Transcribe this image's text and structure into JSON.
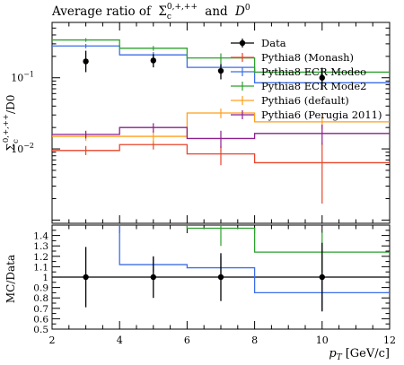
{
  "chart_data": {
    "type": "line",
    "title_text": "Average ratio of",
    "title_sigma": "Σ",
    "title_sigma_sub": "c",
    "title_sigma_sup": "0,+,++",
    "title_and": "and",
    "title_d": "D",
    "title_d_sup": "0",
    "ylabel_sigma": "Σ",
    "ylabel_sub": "c",
    "ylabel_sup": "0,+,++",
    "ylabel_tail": "/D0",
    "xlabel_p": "p",
    "xlabel_sub": "T",
    "xlabel_unit": "[GeV/c]",
    "ratio_ylabel": "MC/Data",
    "x_bin_edges": [
      2,
      4,
      6,
      8,
      12
    ],
    "x_ticks": [
      "2",
      "4",
      "6",
      "8",
      "10",
      "12"
    ],
    "xlim": [
      2,
      12
    ],
    "ylim_main": [
      0.0009,
      0.6
    ],
    "y_scale": "log",
    "y_ticks_main": [
      {
        "value": 0.1,
        "mantissa": "10",
        "exp": "−1"
      },
      {
        "value": 0.01,
        "mantissa": "10",
        "exp": "−2"
      }
    ],
    "ylim_ratio": [
      0.5,
      1.5
    ],
    "y_ticks_ratio": [
      "0.5",
      "0.6",
      "0.7",
      "0.8",
      "0.9",
      "1",
      "1.1",
      "1.2",
      "1.3",
      "1.4"
    ],
    "data_points": {
      "name": "Data",
      "color": "#000000",
      "x": [
        3,
        5,
        7,
        10
      ],
      "y": [
        0.17,
        0.175,
        0.125,
        0.1
      ],
      "yerr_low": [
        0.12,
        0.14,
        0.095,
        0.068
      ],
      "yerr_high": [
        0.24,
        0.215,
        0.155,
        0.135
      ],
      "ratio_err_low": [
        0.71,
        0.8,
        0.77,
        0.67
      ],
      "ratio_err_high": [
        1.29,
        1.2,
        1.23,
        1.33
      ]
    },
    "series": [
      {
        "name": "Pythia8 (Monash)",
        "color": "#e8442a",
        "values": [
          0.0095,
          0.0115,
          0.0085,
          0.0064
        ],
        "err_low": [
          0.0082,
          0.0098,
          0.0059,
          0.0017
        ],
        "err_high": [
          0.011,
          0.013,
          0.011,
          0.012
        ],
        "ratio": [
          null,
          null,
          null,
          null
        ]
      },
      {
        "name": "Pythia8 ECR Modeo",
        "color": "#3b6ee8",
        "values": [
          0.28,
          0.21,
          0.14,
          0.085
        ],
        "err_low": [
          0.26,
          0.19,
          0.12,
          0.07
        ],
        "err_high": [
          0.3,
          0.23,
          0.16,
          0.1
        ],
        "ratio": [
          null,
          1.12,
          1.09,
          0.85
        ],
        "ratio_err_low": [
          null,
          1.05,
          0.98,
          0.68
        ],
        "ratio_err_high": [
          null,
          1.19,
          1.2,
          1.02
        ]
      },
      {
        "name": "Pythia8 ECR Mode2",
        "color": "#2ca02c",
        "values": [
          0.34,
          0.26,
          0.19,
          0.12
        ],
        "err_low": [
          0.32,
          0.24,
          0.16,
          0.1
        ],
        "err_high": [
          0.36,
          0.28,
          0.22,
          0.14
        ],
        "ratio": [
          null,
          null,
          1.47,
          1.24
        ],
        "ratio_err_low": [
          null,
          null,
          1.3,
          1.05
        ],
        "ratio_err_high": [
          null,
          null,
          1.5,
          1.43
        ]
      },
      {
        "name": "Pythia6 (default)",
        "color": "#ff9f1c",
        "values": [
          0.015,
          0.015,
          0.032,
          0.024
        ],
        "err_low": [
          0.013,
          0.012,
          0.027,
          0.019
        ],
        "err_high": [
          0.017,
          0.018,
          0.037,
          0.029
        ],
        "ratio": [
          null,
          null,
          null,
          null
        ]
      },
      {
        "name": "Pythia6 (Perugia 2011)",
        "color": "#8e1e8e",
        "values": [
          0.016,
          0.02,
          0.014,
          0.0165
        ],
        "err_low": [
          0.014,
          0.017,
          0.0103,
          0.0115
        ],
        "err_high": [
          0.018,
          0.023,
          0.018,
          0.022
        ],
        "ratio": [
          null,
          null,
          null,
          null
        ]
      }
    ],
    "legend_position": "top-right",
    "grid": false
  }
}
